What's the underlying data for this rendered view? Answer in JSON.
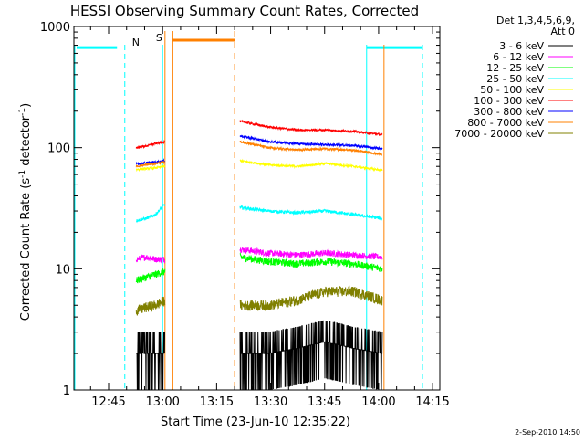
{
  "chart_data": {
    "type": "line",
    "title": "HESSI Observing Summary Count Rates, Corrected",
    "xlabel": "Start Time (23-Jun-10 12:35:22)",
    "ylabel": "Corrected Count Rate (s⁻¹ detector⁻¹)",
    "ylabel_parts": {
      "main": "Corrected Count Rate (s",
      "sup1": "-1",
      "mid": " detector",
      "sup2": "-1",
      "end": ")"
    },
    "y_scale": "log",
    "ylim": [
      1,
      1000
    ],
    "xlim": [
      "12:35:22",
      "14:17:00"
    ],
    "x_ticks": [
      "12:45",
      "13:00",
      "13:15",
      "13:30",
      "13:45",
      "14:00",
      "14:15"
    ],
    "y_ticks": [
      "1",
      "10",
      "100",
      "1000"
    ],
    "grid": false,
    "legend": {
      "placement": "right",
      "header": [
        "Det 1,3,4,5,6,9,",
        "Att 0"
      ]
    },
    "series": [
      {
        "name": "3 - 6 keV",
        "color": "#000000",
        "seg1": [
          2,
          2,
          2,
          2
        ],
        "seg2": [
          2,
          2,
          2.2,
          2.5,
          2.2,
          2
        ],
        "noise": 0.35
      },
      {
        "name": "6 - 12 keV",
        "color": "#ff00ff",
        "seg1": [
          12,
          12.5,
          12,
          12
        ],
        "seg2": [
          14.5,
          13.5,
          13,
          13.5,
          13,
          12.5
        ],
        "noise": 0.06
      },
      {
        "name": "12 - 25 keV",
        "color": "#00ff00",
        "seg1": [
          8,
          8.5,
          9,
          9.5
        ],
        "seg2": [
          12.5,
          11.5,
          11,
          11.5,
          11,
          10
        ],
        "noise": 0.07
      },
      {
        "name": "25 - 50 keV",
        "color": "#00ffff",
        "seg1": [
          25,
          26,
          28,
          34
        ],
        "seg2": [
          32,
          30,
          29,
          30,
          28,
          26
        ],
        "noise": 0.03
      },
      {
        "name": "50 - 100 keV",
        "color": "#ffff00",
        "seg1": [
          66,
          67,
          68,
          70
        ],
        "seg2": [
          78,
          72,
          70,
          74,
          70,
          65
        ],
        "noise": 0.02
      },
      {
        "name": "100 - 300 keV",
        "color": "#ff0000",
        "seg1": [
          100,
          103,
          108,
          112
        ],
        "seg2": [
          165,
          148,
          140,
          140,
          136,
          128
        ],
        "noise": 0.02
      },
      {
        "name": "300 - 800 keV",
        "color": "#0000ff",
        "seg1": [
          74,
          75,
          76,
          78
        ],
        "seg2": [
          125,
          112,
          108,
          106,
          104,
          98
        ],
        "noise": 0.02
      },
      {
        "name": "800 - 7000 keV",
        "color": "#ff8000",
        "seg1": [
          70,
          72,
          74,
          76
        ],
        "seg2": [
          112,
          100,
          96,
          98,
          95,
          88
        ],
        "noise": 0.02
      },
      {
        "name": "7000 - 20000 keV",
        "color": "#808000",
        "seg1": [
          4.5,
          4.8,
          5,
          5.5
        ],
        "seg2": [
          5,
          5,
          5.5,
          6.5,
          6.5,
          5.5
        ],
        "noise": 0.1
      }
    ],
    "annotations": [
      {
        "text": "N",
        "color": "#00ffff"
      },
      {
        "text": "S",
        "color": "#ff8000"
      }
    ]
  },
  "footer": {
    "date": "2-Sep-2010 14:50"
  },
  "colors": {
    "night": "#00ffff",
    "saa": "#ff8000"
  }
}
